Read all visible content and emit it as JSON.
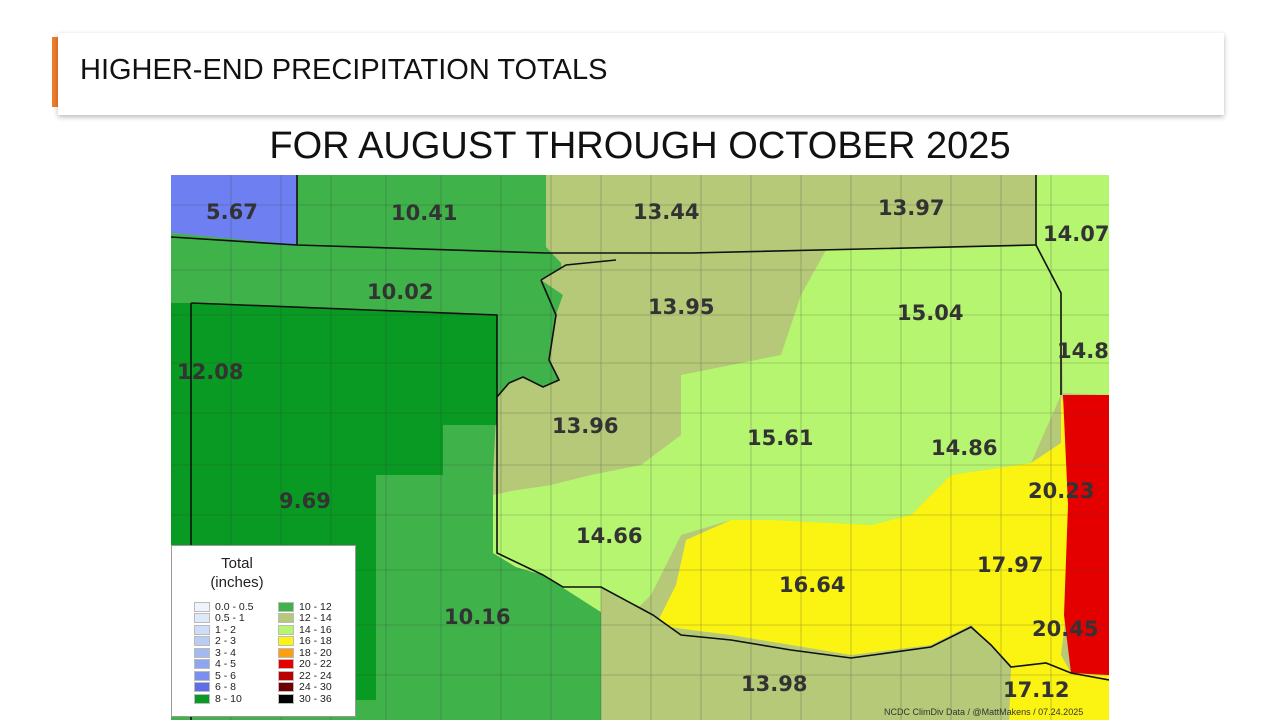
{
  "slide": {
    "title": "HIGHER-END PRECIPITATION TOTALS",
    "subtitle": "FOR AUGUST THROUGH OCTOBER 2025",
    "accent_color": "#ef7d2d"
  },
  "map": {
    "region_values": [
      "5.67",
      "10.41",
      "13.44",
      "13.97",
      "14.07",
      "10.02",
      "13.95",
      "15.04",
      "14.8",
      "12.08",
      "13.96",
      "15.61",
      "14.86",
      "20.23",
      "9.69",
      "14.66",
      "17.97",
      "16.64",
      "10.16",
      "20.45",
      "13.98",
      "17.12"
    ],
    "credit": "NCDC ClimDiv Data / @MattMakens / 07.24.2025"
  },
  "legend": {
    "title_line1": "Total",
    "title_line2": "(inches)",
    "left_column": [
      {
        "label": "0.0 - 0.5",
        "color": "#eef4fc"
      },
      {
        "label": "0.5 - 1",
        "color": "#dde8f8"
      },
      {
        "label": "1 - 2",
        "color": "#cdddf6"
      },
      {
        "label": "2 - 3",
        "color": "#b9ccf3"
      },
      {
        "label": "3 - 4",
        "color": "#a3b9f1"
      },
      {
        "label": "4 - 5",
        "color": "#8ea6ef"
      },
      {
        "label": "5 - 6",
        "color": "#7a8ff0"
      },
      {
        "label": "6 - 8",
        "color": "#5f6ee8"
      },
      {
        "label": "8 - 10",
        "color": "#089a22"
      }
    ],
    "right_column": [
      {
        "label": "10 - 12",
        "color": "#3fb24a"
      },
      {
        "label": "12 - 14",
        "color": "#b5c978"
      },
      {
        "label": "14 - 16",
        "color": "#b6f56f"
      },
      {
        "label": "16 - 18",
        "color": "#fbf412"
      },
      {
        "label": "18 - 20",
        "color": "#ff9f10"
      },
      {
        "label": "20 - 22",
        "color": "#e50000"
      },
      {
        "label": "22 - 24",
        "color": "#bb0000"
      },
      {
        "label": "24 - 30",
        "color": "#6e0000"
      },
      {
        "label": "30 - 36",
        "color": "#000000"
      }
    ]
  }
}
